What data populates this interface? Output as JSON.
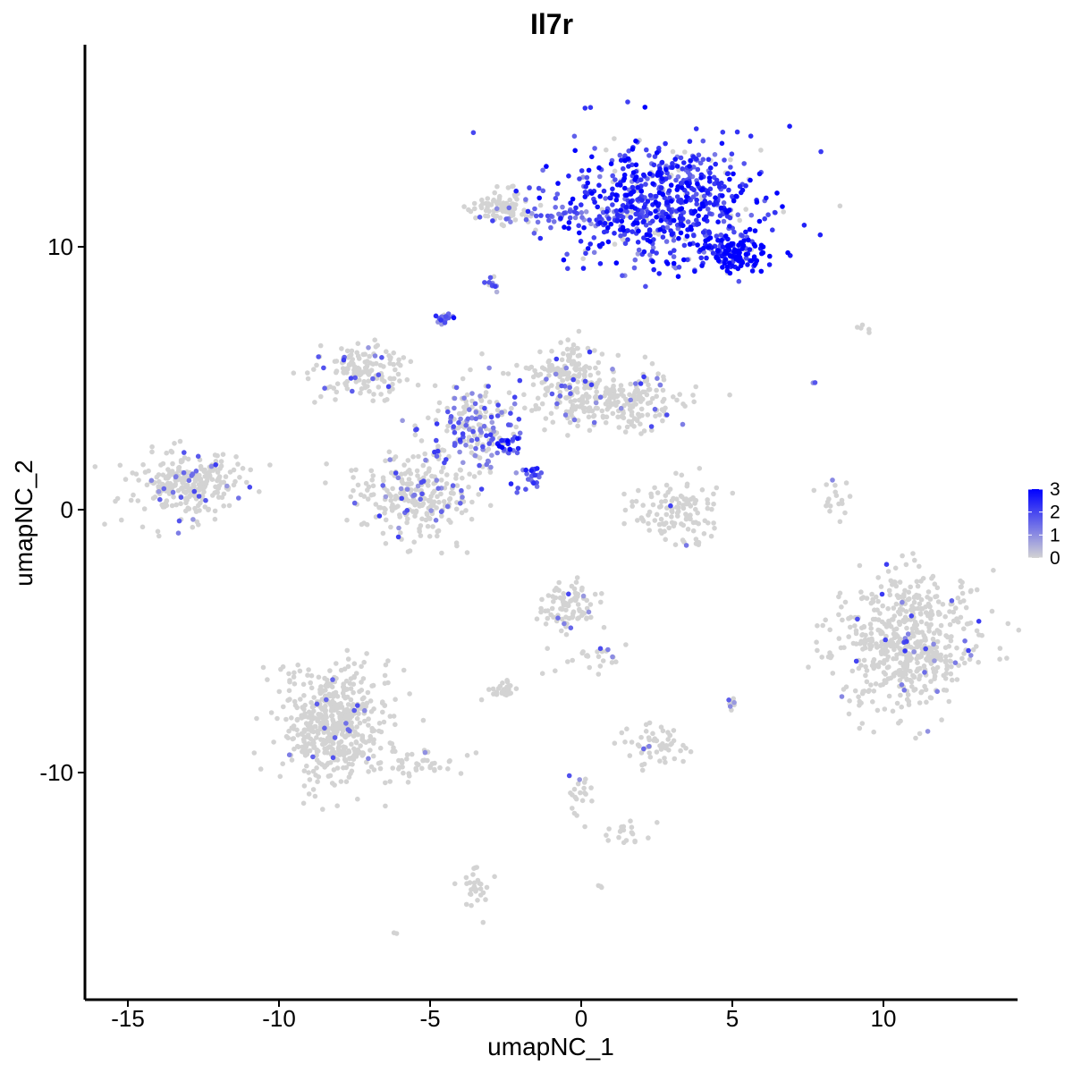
{
  "chart_data": {
    "type": "scatter",
    "title": "Il7r",
    "xlabel": "umapNC_1",
    "ylabel": "umapNC_2",
    "xlim": [
      -16.5,
      14.5
    ],
    "ylim": [
      -18.5,
      16.5
    ],
    "x_ticks": [
      -15,
      -10,
      -5,
      0,
      5,
      10
    ],
    "y_ticks": [
      -10,
      0,
      10
    ],
    "x_tick_labels": [
      "-15",
      "-10",
      "-5",
      "0",
      "5",
      "10"
    ],
    "y_tick_labels": [
      "-10",
      "0",
      "10"
    ],
    "grid": false,
    "legend": {
      "placement": "right",
      "type": "colorbar",
      "min": 0,
      "max": 3,
      "ticks": [
        "0",
        "1",
        "2",
        "3"
      ],
      "low_color": "#d3d3d3",
      "high_color": "#0000ff"
    },
    "point_color_low": "#d3d3d3",
    "point_color_high": "#0000ff",
    "clusters": [
      {
        "cx": 2.8,
        "cy": 11.7,
        "sx": 2.2,
        "sy": 1.6,
        "n": 700,
        "expr": 2.3
      },
      {
        "cx": 5.2,
        "cy": 9.7,
        "sx": 0.6,
        "sy": 0.4,
        "n": 120,
        "expr": 3.0
      },
      {
        "cx": -2.6,
        "cy": 11.5,
        "sx": 0.7,
        "sy": 0.4,
        "n": 90,
        "expr": 0.1
      },
      {
        "cx": -0.5,
        "cy": 11.2,
        "sx": 1.6,
        "sy": 0.3,
        "n": 40,
        "expr": 1.2
      },
      {
        "cx": -3.0,
        "cy": 8.6,
        "sx": 0.2,
        "sy": 0.2,
        "n": 12,
        "expr": 1.6
      },
      {
        "cx": -4.6,
        "cy": 7.3,
        "sx": 0.2,
        "sy": 0.15,
        "n": 15,
        "expr": 1.8
      },
      {
        "cx": -7.3,
        "cy": 5.2,
        "sx": 1.0,
        "sy": 0.7,
        "n": 150,
        "expr": 0.1
      },
      {
        "cx": -0.5,
        "cy": 5.0,
        "sx": 0.8,
        "sy": 1.0,
        "n": 180,
        "expr": 0.1
      },
      {
        "cx": 1.5,
        "cy": 4.1,
        "sx": 1.4,
        "sy": 0.7,
        "n": 200,
        "expr": 0.1
      },
      {
        "cx": -3.6,
        "cy": 3.2,
        "sx": 1.0,
        "sy": 1.2,
        "n": 200,
        "expr": 0.5
      },
      {
        "cx": -5.5,
        "cy": 0.5,
        "sx": 1.3,
        "sy": 1.0,
        "n": 260,
        "expr": 0.15
      },
      {
        "cx": -2.5,
        "cy": 2.4,
        "sx": 0.4,
        "sy": 0.25,
        "n": 25,
        "expr": 2.2
      },
      {
        "cx": -1.8,
        "cy": 1.2,
        "sx": 0.3,
        "sy": 0.3,
        "n": 25,
        "expr": 1.7
      },
      {
        "cx": -13.0,
        "cy": 1.0,
        "sx": 1.2,
        "sy": 0.8,
        "n": 280,
        "expr": 0.08
      },
      {
        "cx": 3.2,
        "cy": 0.0,
        "sx": 1.1,
        "sy": 0.8,
        "n": 120,
        "expr": 0.02
      },
      {
        "cx": 8.3,
        "cy": 0.3,
        "sx": 0.3,
        "sy": 0.6,
        "n": 18,
        "expr": 0.1
      },
      {
        "cx": 10.8,
        "cy": -5.0,
        "sx": 1.5,
        "sy": 1.6,
        "n": 560,
        "expr": 0.05
      },
      {
        "cx": -0.4,
        "cy": -3.6,
        "sx": 0.6,
        "sy": 0.6,
        "n": 90,
        "expr": 0.05
      },
      {
        "cx": -8.2,
        "cy": -8.2,
        "sx": 1.2,
        "sy": 1.5,
        "n": 520,
        "expr": 0.02
      },
      {
        "cx": -5.5,
        "cy": -9.6,
        "sx": 1.2,
        "sy": 0.4,
        "n": 45,
        "expr": 0.02
      },
      {
        "cx": 2.5,
        "cy": -9.0,
        "sx": 0.7,
        "sy": 0.5,
        "n": 60,
        "expr": 0.05
      },
      {
        "cx": -2.5,
        "cy": -6.9,
        "sx": 0.3,
        "sy": 0.2,
        "n": 30,
        "expr": 0.0
      },
      {
        "cx": 5.0,
        "cy": -7.3,
        "sx": 0.1,
        "sy": 0.2,
        "n": 8,
        "expr": 0.3
      },
      {
        "cx": -3.5,
        "cy": -14.5,
        "sx": 0.3,
        "sy": 0.6,
        "n": 30,
        "expr": 0.0
      },
      {
        "cx": 1.5,
        "cy": -12.3,
        "sx": 0.6,
        "sy": 0.3,
        "n": 20,
        "expr": 0.0
      },
      {
        "cx": 0.0,
        "cy": -10.9,
        "sx": 0.3,
        "sy": 0.7,
        "n": 20,
        "expr": 0.05
      },
      {
        "cx": 0.3,
        "cy": -5.6,
        "sx": 1.0,
        "sy": 0.4,
        "n": 25,
        "expr": 0.1
      },
      {
        "cx": 9.4,
        "cy": 6.8,
        "sx": 0.3,
        "sy": 0.2,
        "n": 5,
        "expr": 0.0
      },
      {
        "cx": 7.7,
        "cy": 4.8,
        "sx": 0.05,
        "sy": 0.05,
        "n": 2,
        "expr": 1.2
      },
      {
        "cx": 0.6,
        "cy": -14.3,
        "sx": 0.05,
        "sy": 0.05,
        "n": 3,
        "expr": 0.0
      },
      {
        "cx": -6.1,
        "cy": -16.1,
        "sx": 0.05,
        "sy": 0.05,
        "n": 2,
        "expr": 0.0
      }
    ],
    "point_count_approx": 4500
  }
}
